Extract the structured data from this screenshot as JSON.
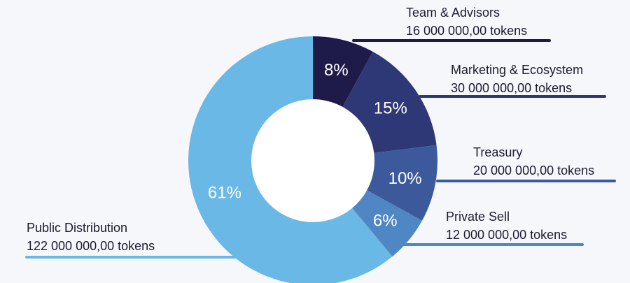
{
  "chart_data": {
    "type": "pie",
    "donut": true,
    "start": "top, clockwise",
    "slices": [
      {
        "name": "Team & Advisors",
        "percent": 8,
        "percent_label": "8%",
        "tokens": 16000000,
        "tokens_label": "16 000 000,00 tokens",
        "color": "#1e1b4b"
      },
      {
        "name": "Marketing & Ecosystem",
        "percent": 15,
        "percent_label": "15%",
        "tokens": 30000000,
        "tokens_label": "30 000 000,00 tokens",
        "color": "#2e3876"
      },
      {
        "name": "Treasury",
        "percent": 10,
        "percent_label": "10%",
        "tokens": 20000000,
        "tokens_label": "20 000 000,00 tokens",
        "color": "#3c5a9b"
      },
      {
        "name": "Private Sell",
        "percent": 6,
        "percent_label": "6%",
        "tokens": 12000000,
        "tokens_label": "12 000 000,00 tokens",
        "color": "#4f86c4"
      },
      {
        "name": "Public Distribution",
        "percent": 61,
        "percent_label": "61%",
        "tokens": 122000000,
        "tokens_label": "122 000 000,00 tokens",
        "color": "#6ab8e6"
      }
    ],
    "background": "#f6f7fb"
  }
}
